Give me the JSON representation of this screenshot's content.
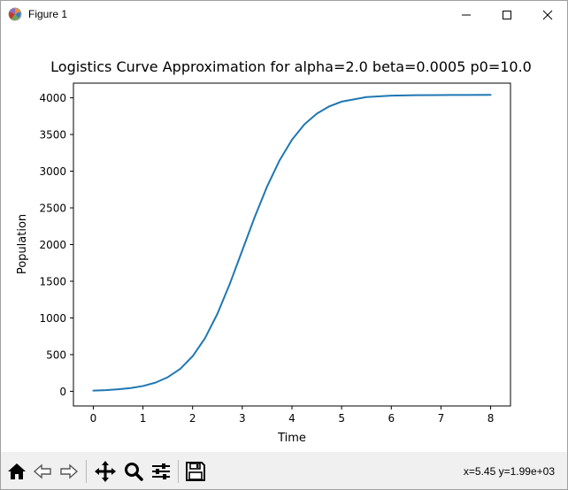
{
  "window": {
    "title": "Figure 1"
  },
  "toolbar": {
    "buttons": [
      {
        "name": "home-button",
        "icon": "home-icon"
      },
      {
        "name": "back-button",
        "icon": "back-arrow-icon"
      },
      {
        "name": "forward-button",
        "icon": "forward-arrow-icon"
      },
      {
        "name": "pan-button",
        "icon": "move-icon"
      },
      {
        "name": "zoom-button",
        "icon": "magnifier-icon"
      },
      {
        "name": "configure-subplots-button",
        "icon": "sliders-icon"
      },
      {
        "name": "save-button",
        "icon": "floppy-disk-icon"
      }
    ],
    "coords_text": "x=5.45 y=1.99e+03"
  },
  "chart_data": {
    "type": "line",
    "title": "Logistics Curve Approximation for alpha=2.0 beta=0.0005 p0=10.0",
    "xlabel": "Time",
    "ylabel": "Population",
    "xlim": [
      -0.4,
      8.4
    ],
    "ylim": [
      -200,
      4200
    ],
    "xticks": [
      0,
      1,
      2,
      3,
      4,
      5,
      6,
      7,
      8
    ],
    "yticks": [
      0,
      500,
      1000,
      1500,
      2000,
      2500,
      3000,
      3500,
      4000
    ],
    "grid": false,
    "series": [
      {
        "color": "#1f77b4",
        "x": [
          0,
          0.25,
          0.5,
          0.75,
          1.0,
          1.25,
          1.5,
          1.75,
          2.0,
          2.25,
          2.5,
          2.75,
          3.0,
          3.25,
          3.5,
          3.75,
          4.0,
          4.25,
          4.5,
          4.75,
          5.0,
          5.5,
          6.0,
          6.5,
          7.0,
          7.5,
          8.0
        ],
        "y": [
          10,
          16,
          27,
          44,
          72,
          118,
          192,
          306,
          478,
          725,
          1058,
          1467,
          1920,
          2375,
          2792,
          3147,
          3429,
          3638,
          3784,
          3883,
          3948,
          4010,
          4030,
          4036,
          4038,
          4039,
          4040
        ]
      }
    ]
  }
}
